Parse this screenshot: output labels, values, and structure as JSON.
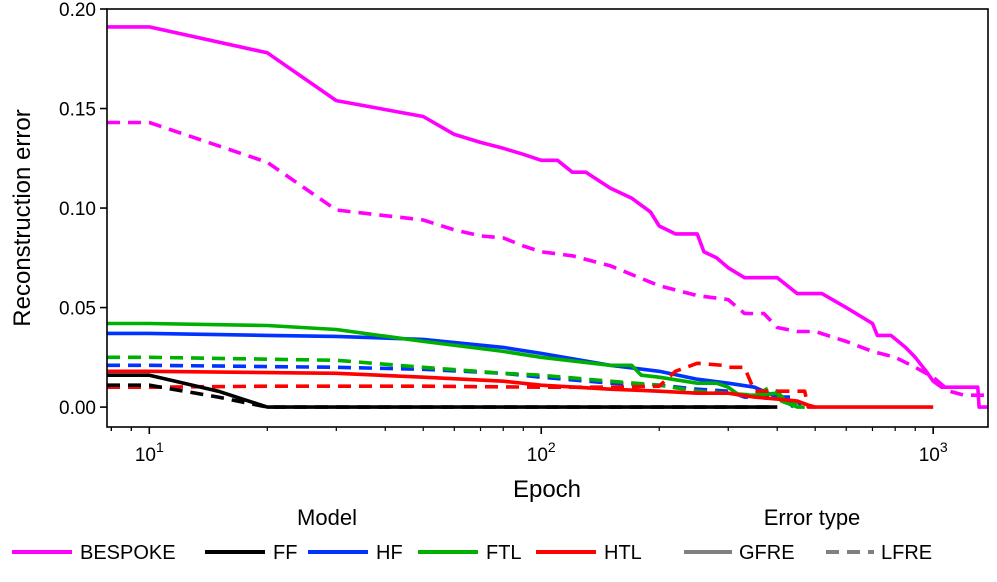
{
  "chart_data": {
    "type": "line",
    "xlabel": "Epoch",
    "ylabel": "Reconstruction error",
    "xscale": "log",
    "xlim": [
      7.8,
      1380
    ],
    "ylim": [
      -0.01,
      0.2
    ],
    "xticks": [
      {
        "value": 10,
        "base": "10",
        "exp": "1"
      },
      {
        "value": 100,
        "base": "10",
        "exp": "2"
      },
      {
        "value": 1000,
        "base": "10",
        "exp": "3"
      }
    ],
    "yticks": [
      {
        "value": 0.0,
        "label": "0.00"
      },
      {
        "value": 0.05,
        "label": "0.05"
      },
      {
        "value": 0.1,
        "label": "0.10"
      },
      {
        "value": 0.15,
        "label": "0.15"
      },
      {
        "value": 0.2,
        "label": "0.20"
      }
    ],
    "grid": false,
    "legend_models": {
      "title": "Model",
      "items": [
        {
          "label": "BESPOKE",
          "color": "#ff00ff"
        },
        {
          "label": "FF",
          "color": "#000000"
        },
        {
          "label": "HF",
          "color": "#0033ff"
        },
        {
          "label": "FTL",
          "color": "#00b000"
        },
        {
          "label": "HTL",
          "color": "#ff0000"
        }
      ]
    },
    "legend_error_type": {
      "title": "Error type",
      "items": [
        {
          "label": "GFRE",
          "dash": "solid",
          "color": "#808080"
        },
        {
          "label": "LFRE",
          "dash": "dashed",
          "color": "#808080"
        }
      ]
    },
    "series": [
      {
        "model": "BESPOKE",
        "error": "GFRE",
        "color": "#ff00ff",
        "dash": "solid",
        "step": false,
        "points": [
          [
            7.8,
            0.191
          ],
          [
            10,
            0.191
          ],
          [
            20,
            0.178
          ],
          [
            30,
            0.154
          ],
          [
            50,
            0.146
          ],
          [
            60,
            0.137
          ],
          [
            70,
            0.133
          ],
          [
            80,
            0.13
          ],
          [
            90,
            0.127
          ],
          [
            100,
            0.124
          ],
          [
            110,
            0.124
          ],
          [
            120,
            0.118
          ],
          [
            130,
            0.118
          ],
          [
            150,
            0.11
          ],
          [
            170,
            0.105
          ],
          [
            190,
            0.098
          ],
          [
            200,
            0.091
          ],
          [
            220,
            0.087
          ],
          [
            250,
            0.087
          ],
          [
            260,
            0.078
          ],
          [
            280,
            0.075
          ],
          [
            300,
            0.07
          ],
          [
            330,
            0.065
          ],
          [
            400,
            0.065
          ],
          [
            450,
            0.057
          ],
          [
            520,
            0.057
          ],
          [
            600,
            0.05
          ],
          [
            700,
            0.042
          ],
          [
            720,
            0.036
          ],
          [
            780,
            0.036
          ],
          [
            850,
            0.03
          ],
          [
            900,
            0.025
          ],
          [
            960,
            0.018
          ],
          [
            1000,
            0.013
          ],
          [
            1050,
            0.01
          ],
          [
            1300,
            0.01
          ],
          [
            1310,
            0.0
          ],
          [
            1380,
            0.0
          ]
        ]
      },
      {
        "model": "BESPOKE",
        "error": "LFRE",
        "color": "#ff00ff",
        "dash": "dashed",
        "step": false,
        "points": [
          [
            7.8,
            0.143
          ],
          [
            10,
            0.143
          ],
          [
            20,
            0.123
          ],
          [
            30,
            0.099
          ],
          [
            50,
            0.094
          ],
          [
            60,
            0.089
          ],
          [
            70,
            0.086
          ],
          [
            80,
            0.085
          ],
          [
            90,
            0.081
          ],
          [
            100,
            0.078
          ],
          [
            120,
            0.076
          ],
          [
            150,
            0.071
          ],
          [
            200,
            0.061
          ],
          [
            250,
            0.056
          ],
          [
            300,
            0.054
          ],
          [
            330,
            0.047
          ],
          [
            370,
            0.047
          ],
          [
            400,
            0.04
          ],
          [
            450,
            0.038
          ],
          [
            500,
            0.038
          ],
          [
            600,
            0.033
          ],
          [
            700,
            0.028
          ],
          [
            800,
            0.025
          ],
          [
            900,
            0.02
          ],
          [
            1000,
            0.015
          ],
          [
            1100,
            0.008
          ],
          [
            1200,
            0.006
          ],
          [
            1380,
            0.006
          ]
        ]
      },
      {
        "model": "HF",
        "error": "GFRE",
        "color": "#0033ff",
        "dash": "solid",
        "step": false,
        "points": [
          [
            7.8,
            0.037
          ],
          [
            10,
            0.037
          ],
          [
            20,
            0.036
          ],
          [
            30,
            0.0355
          ],
          [
            50,
            0.034
          ],
          [
            80,
            0.03
          ],
          [
            100,
            0.027
          ],
          [
            150,
            0.021
          ],
          [
            200,
            0.018
          ],
          [
            250,
            0.014
          ],
          [
            300,
            0.012
          ],
          [
            350,
            0.01
          ],
          [
            400,
            0.005
          ],
          [
            430,
            0.002
          ],
          [
            440,
            0.0
          ]
        ]
      },
      {
        "model": "HF",
        "error": "LFRE",
        "color": "#0033ff",
        "dash": "dashed",
        "step": false,
        "points": [
          [
            7.8,
            0.021
          ],
          [
            10,
            0.021
          ],
          [
            30,
            0.02
          ],
          [
            50,
            0.019
          ],
          [
            80,
            0.017
          ],
          [
            100,
            0.015
          ],
          [
            150,
            0.012
          ],
          [
            200,
            0.011
          ],
          [
            250,
            0.009
          ],
          [
            300,
            0.008
          ],
          [
            330,
            0.005
          ],
          [
            400,
            0.005
          ],
          [
            440,
            0.005
          ],
          [
            460,
            0.001
          ]
        ]
      },
      {
        "model": "FTL",
        "error": "GFRE",
        "color": "#00b000",
        "dash": "solid",
        "step": false,
        "points": [
          [
            7.8,
            0.042
          ],
          [
            10,
            0.042
          ],
          [
            20,
            0.041
          ],
          [
            30,
            0.039
          ],
          [
            50,
            0.033
          ],
          [
            80,
            0.028
          ],
          [
            100,
            0.025
          ],
          [
            150,
            0.021
          ],
          [
            170,
            0.021
          ],
          [
            180,
            0.016
          ],
          [
            200,
            0.015
          ],
          [
            250,
            0.012
          ],
          [
            280,
            0.012
          ],
          [
            300,
            0.01
          ],
          [
            320,
            0.006
          ],
          [
            350,
            0.006
          ],
          [
            400,
            0.007
          ],
          [
            410,
            0.003
          ],
          [
            450,
            0.0
          ],
          [
            470,
            0.0
          ]
        ]
      },
      {
        "model": "FTL",
        "error": "LFRE",
        "color": "#00b000",
        "dash": "dashed",
        "step": false,
        "points": [
          [
            7.8,
            0.025
          ],
          [
            10,
            0.025
          ],
          [
            30,
            0.0235
          ],
          [
            50,
            0.02
          ],
          [
            80,
            0.017
          ],
          [
            100,
            0.016
          ],
          [
            150,
            0.013
          ],
          [
            200,
            0.011
          ],
          [
            250,
            0.008
          ],
          [
            300,
            0.007
          ],
          [
            350,
            0.006
          ],
          [
            380,
            0.0095
          ],
          [
            400,
            0.008
          ],
          [
            420,
            0.003
          ],
          [
            450,
            0.001
          ]
        ]
      },
      {
        "model": "HTL",
        "error": "GFRE",
        "color": "#ff0000",
        "dash": "solid",
        "step": false,
        "points": [
          [
            7.8,
            0.018
          ],
          [
            10,
            0.018
          ],
          [
            30,
            0.017
          ],
          [
            50,
            0.015
          ],
          [
            80,
            0.013
          ],
          [
            100,
            0.011
          ],
          [
            150,
            0.009
          ],
          [
            200,
            0.008
          ],
          [
            250,
            0.007
          ],
          [
            300,
            0.007
          ],
          [
            350,
            0.005
          ],
          [
            400,
            0.004
          ],
          [
            450,
            0.003
          ],
          [
            480,
            0.001
          ],
          [
            500,
            0.0
          ],
          [
            1000,
            0.0
          ]
        ]
      },
      {
        "model": "HTL",
        "error": "LFRE",
        "color": "#ff0000",
        "dash": "dashed",
        "step": false,
        "points": [
          [
            7.8,
            0.01
          ],
          [
            10,
            0.01
          ],
          [
            20,
            0.0105
          ],
          [
            50,
            0.0105
          ],
          [
            100,
            0.01
          ],
          [
            150,
            0.01
          ],
          [
            200,
            0.0105
          ],
          [
            220,
            0.018
          ],
          [
            250,
            0.022
          ],
          [
            290,
            0.021
          ],
          [
            300,
            0.02
          ],
          [
            330,
            0.02
          ],
          [
            350,
            0.008
          ],
          [
            400,
            0.008
          ],
          [
            470,
            0.008
          ],
          [
            480,
            0.0
          ],
          [
            500,
            0.0
          ]
        ]
      },
      {
        "model": "FF",
        "error": "GFRE",
        "color": "#000000",
        "dash": "solid",
        "step": false,
        "points": [
          [
            7.8,
            0.016
          ],
          [
            10,
            0.016
          ],
          [
            15,
            0.008
          ],
          [
            20,
            0.0
          ],
          [
            100,
            0.0
          ],
          [
            400,
            0.0
          ]
        ]
      },
      {
        "model": "FF",
        "error": "LFRE",
        "color": "#000000",
        "dash": "dashed",
        "step": false,
        "points": [
          [
            7.8,
            0.011
          ],
          [
            10,
            0.011
          ],
          [
            15,
            0.005
          ],
          [
            20,
            0.0
          ],
          [
            100,
            0.0
          ],
          [
            400,
            0.0
          ]
        ]
      }
    ]
  }
}
